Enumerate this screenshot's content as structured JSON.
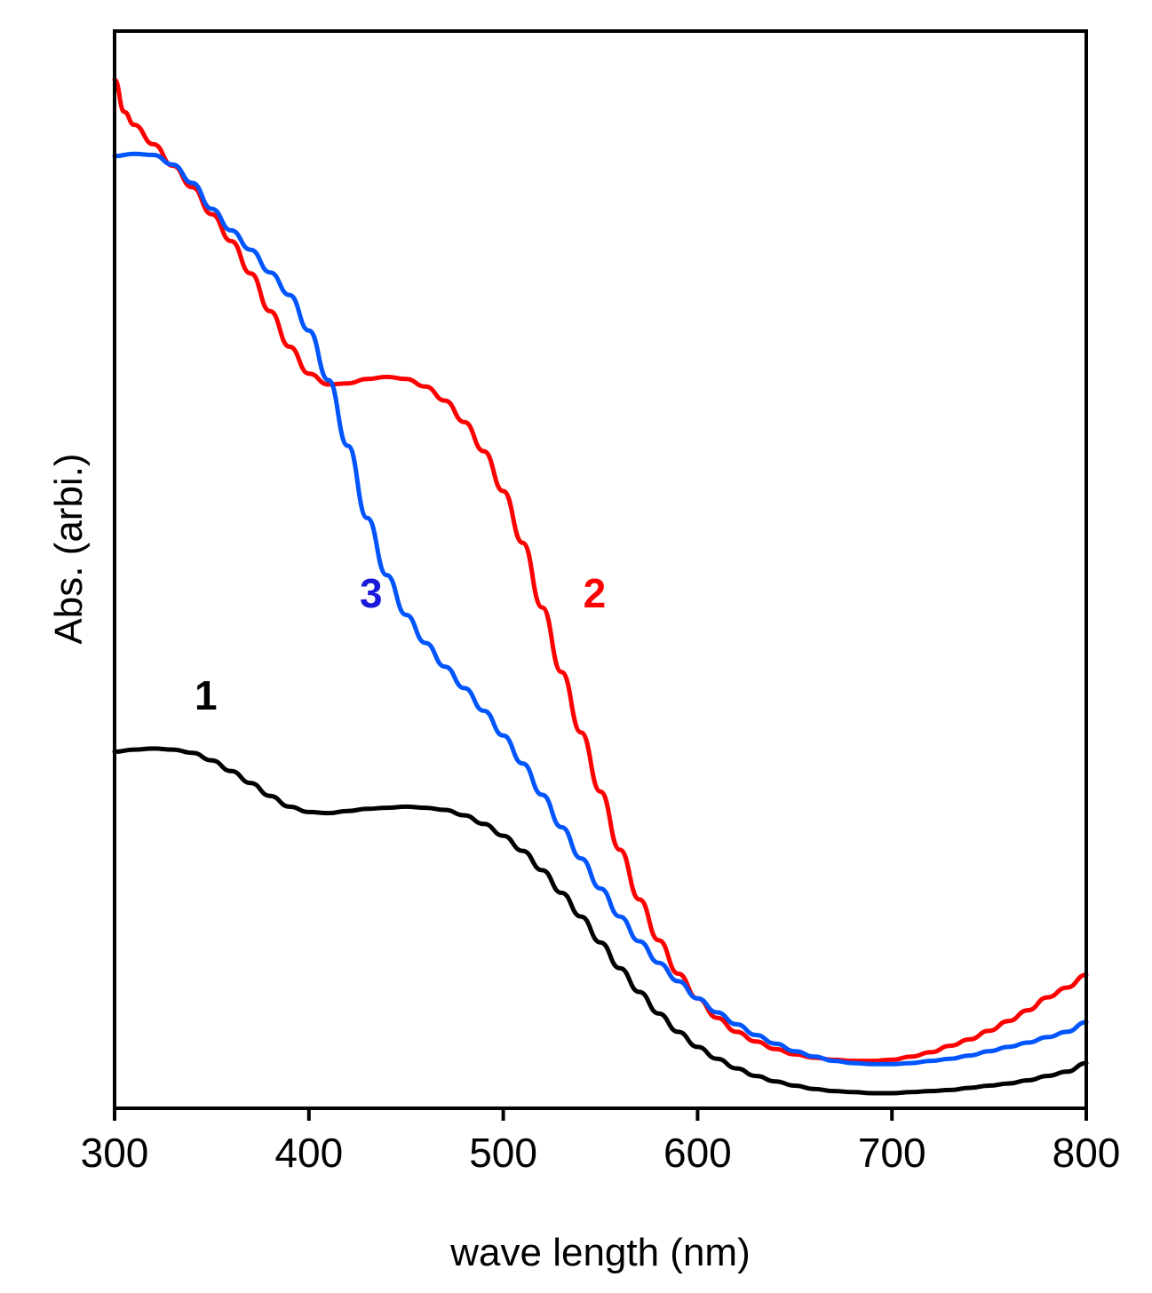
{
  "chart_data": {
    "type": "line",
    "title": "",
    "xlabel": "wave length (nm)",
    "ylabel": "Abs. (arbi.)",
    "xlim": [
      300,
      800
    ],
    "ylim": [
      0,
      1
    ],
    "xticks": [
      300,
      400,
      500,
      600,
      700,
      800
    ],
    "x_tick_labels": [
      "300",
      "400",
      "500",
      "600",
      "700",
      "800"
    ],
    "y_tick_labels_shown": false,
    "grid": false,
    "legend": "none",
    "series": [
      {
        "name": "1",
        "color": "#000000",
        "points": [
          [
            300,
            0.331
          ],
          [
            310,
            0.333
          ],
          [
            320,
            0.334
          ],
          [
            330,
            0.333
          ],
          [
            340,
            0.33
          ],
          [
            350,
            0.323
          ],
          [
            360,
            0.313
          ],
          [
            370,
            0.302
          ],
          [
            380,
            0.29
          ],
          [
            390,
            0.28
          ],
          [
            400,
            0.275
          ],
          [
            410,
            0.274
          ],
          [
            420,
            0.276
          ],
          [
            430,
            0.278
          ],
          [
            440,
            0.279
          ],
          [
            450,
            0.28
          ],
          [
            460,
            0.279
          ],
          [
            470,
            0.277
          ],
          [
            480,
            0.272
          ],
          [
            490,
            0.264
          ],
          [
            500,
            0.253
          ],
          [
            510,
            0.239
          ],
          [
            520,
            0.221
          ],
          [
            530,
            0.2
          ],
          [
            540,
            0.178
          ],
          [
            550,
            0.154
          ],
          [
            560,
            0.13
          ],
          [
            570,
            0.108
          ],
          [
            580,
            0.088
          ],
          [
            590,
            0.071
          ],
          [
            600,
            0.057
          ],
          [
            610,
            0.046
          ],
          [
            620,
            0.037
          ],
          [
            630,
            0.03
          ],
          [
            640,
            0.025
          ],
          [
            650,
            0.021
          ],
          [
            660,
            0.018
          ],
          [
            670,
            0.016
          ],
          [
            680,
            0.015
          ],
          [
            690,
            0.014
          ],
          [
            700,
            0.014
          ],
          [
            710,
            0.015
          ],
          [
            720,
            0.016
          ],
          [
            730,
            0.017
          ],
          [
            740,
            0.019
          ],
          [
            750,
            0.021
          ],
          [
            760,
            0.023
          ],
          [
            770,
            0.026
          ],
          [
            780,
            0.03
          ],
          [
            790,
            0.034
          ],
          [
            800,
            0.042
          ]
        ]
      },
      {
        "name": "2",
        "color": "#ff0000",
        "points": [
          [
            300,
            0.955
          ],
          [
            305,
            0.925
          ],
          [
            310,
            0.913
          ],
          [
            320,
            0.895
          ],
          [
            330,
            0.875
          ],
          [
            340,
            0.855
          ],
          [
            350,
            0.83
          ],
          [
            360,
            0.805
          ],
          [
            370,
            0.775
          ],
          [
            380,
            0.74
          ],
          [
            390,
            0.707
          ],
          [
            400,
            0.682
          ],
          [
            410,
            0.672
          ],
          [
            420,
            0.673
          ],
          [
            430,
            0.677
          ],
          [
            440,
            0.679
          ],
          [
            450,
            0.677
          ],
          [
            460,
            0.67
          ],
          [
            470,
            0.657
          ],
          [
            480,
            0.637
          ],
          [
            490,
            0.61
          ],
          [
            500,
            0.573
          ],
          [
            510,
            0.525
          ],
          [
            520,
            0.465
          ],
          [
            530,
            0.405
          ],
          [
            540,
            0.349
          ],
          [
            550,
            0.294
          ],
          [
            560,
            0.24
          ],
          [
            570,
            0.194
          ],
          [
            580,
            0.156
          ],
          [
            590,
            0.125
          ],
          [
            600,
            0.102
          ],
          [
            610,
            0.084
          ],
          [
            620,
            0.071
          ],
          [
            630,
            0.062
          ],
          [
            640,
            0.055
          ],
          [
            650,
            0.05
          ],
          [
            660,
            0.047
          ],
          [
            670,
            0.045
          ],
          [
            680,
            0.044
          ],
          [
            690,
            0.044
          ],
          [
            700,
            0.045
          ],
          [
            710,
            0.048
          ],
          [
            720,
            0.052
          ],
          [
            730,
            0.058
          ],
          [
            740,
            0.064
          ],
          [
            750,
            0.072
          ],
          [
            760,
            0.081
          ],
          [
            770,
            0.091
          ],
          [
            780,
            0.103
          ],
          [
            790,
            0.112
          ],
          [
            800,
            0.124
          ]
        ]
      },
      {
        "name": "3",
        "color": "#0055ff",
        "points": [
          [
            300,
            0.884
          ],
          [
            310,
            0.886
          ],
          [
            320,
            0.885
          ],
          [
            330,
            0.876
          ],
          [
            340,
            0.859
          ],
          [
            350,
            0.835
          ],
          [
            360,
            0.815
          ],
          [
            370,
            0.797
          ],
          [
            380,
            0.776
          ],
          [
            390,
            0.755
          ],
          [
            400,
            0.722
          ],
          [
            410,
            0.676
          ],
          [
            420,
            0.615
          ],
          [
            430,
            0.548
          ],
          [
            440,
            0.495
          ],
          [
            450,
            0.458
          ],
          [
            460,
            0.432
          ],
          [
            470,
            0.41
          ],
          [
            480,
            0.39
          ],
          [
            490,
            0.369
          ],
          [
            500,
            0.346
          ],
          [
            510,
            0.32
          ],
          [
            520,
            0.291
          ],
          [
            530,
            0.261
          ],
          [
            540,
            0.232
          ],
          [
            550,
            0.204
          ],
          [
            560,
            0.178
          ],
          [
            570,
            0.155
          ],
          [
            580,
            0.135
          ],
          [
            590,
            0.118
          ],
          [
            600,
            0.102
          ],
          [
            610,
            0.089
          ],
          [
            620,
            0.078
          ],
          [
            630,
            0.068
          ],
          [
            640,
            0.06
          ],
          [
            650,
            0.053
          ],
          [
            660,
            0.048
          ],
          [
            670,
            0.044
          ],
          [
            680,
            0.042
          ],
          [
            690,
            0.041
          ],
          [
            700,
            0.041
          ],
          [
            710,
            0.042
          ],
          [
            720,
            0.044
          ],
          [
            730,
            0.046
          ],
          [
            740,
            0.049
          ],
          [
            750,
            0.053
          ],
          [
            760,
            0.057
          ],
          [
            770,
            0.061
          ],
          [
            780,
            0.066
          ],
          [
            790,
            0.071
          ],
          [
            800,
            0.08
          ]
        ]
      }
    ],
    "annotations": [
      {
        "text": "1",
        "color": "#000000",
        "x": 347,
        "y": 0.37
      },
      {
        "text": "2",
        "color": "#ff0000",
        "x": 547,
        "y": 0.465
      },
      {
        "text": "3",
        "color": "#1a1adb",
        "x": 432,
        "y": 0.465
      }
    ]
  }
}
